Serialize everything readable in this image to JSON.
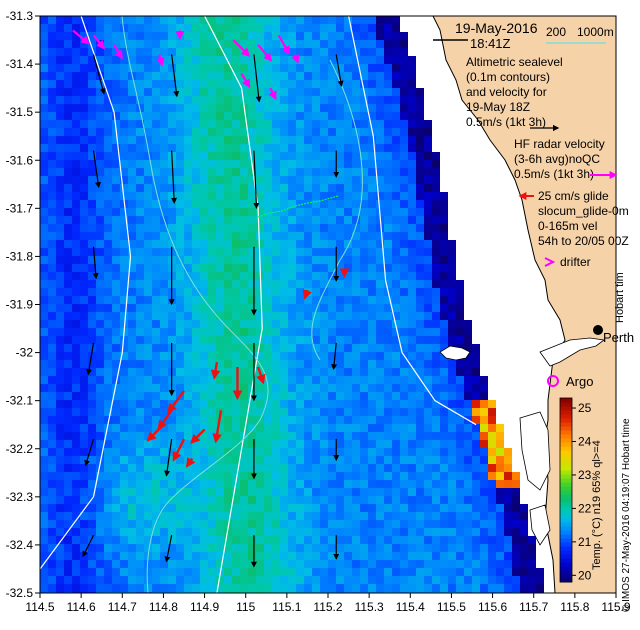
{
  "chart_data": {
    "type": "heatmap",
    "title": "",
    "xlabel": "",
    "ylabel": "",
    "xlim": [
      114.5,
      115.9
    ],
    "ylim": [
      -32.5,
      -31.3
    ],
    "x_ticks": [
      114.5,
      114.6,
      114.7,
      114.8,
      114.9,
      115,
      115.1,
      115.2,
      115.3,
      115.4,
      115.5,
      115.6,
      115.7,
      115.8,
      115.9
    ],
    "x_tick_labels": [
      "114.5",
      "114.6",
      "114.7",
      "114.8",
      "114.9",
      "115",
      "115.1",
      "115.2",
      "115.3",
      "115.4",
      "115.5",
      "115.6",
      "115.7",
      "115.8",
      "115.9"
    ],
    "y_ticks": [
      -31.3,
      -31.4,
      -31.5,
      -31.6,
      -31.7,
      -31.8,
      -31.9,
      -32,
      -32.1,
      -32.2,
      -32.3,
      -32.4,
      -32.5
    ],
    "y_tick_labels": [
      "-31.3",
      "-31.4",
      "-31.5",
      "-31.6",
      "-31.7",
      "-31.8",
      "-31.9",
      "-32",
      "-32.1",
      "-32.2",
      "-32.3",
      "-32.4",
      "-32.5"
    ],
    "colorbar": {
      "label": "Temp. (°C) n19 65% ql>=4",
      "ticks": [
        20,
        21,
        22,
        23,
        24,
        25
      ],
      "range": [
        19.8,
        25.3
      ]
    },
    "annotations": {
      "date": "19-May-2016",
      "time": "18:41Z",
      "depth_200": "200",
      "depth_1000": "1000m",
      "alt_1": "Altimetric sealevel",
      "alt_2": "(0.1m contours)",
      "alt_3": "and velocity for",
      "alt_4": "19-May 18Z",
      "alt_5": "0.5m/s (1kt 3h)",
      "hf_1": "HF radar velocity",
      "hf_2": "(3-6h avg)noQC",
      "hf_3": "0.5m/s (1kt 3h)",
      "glide_1": "25 cm/s glide",
      "glide_2": "slocum_glide-0m",
      "glide_3": "0-165m vel",
      "glide_4": "54h to 20/05 00Z",
      "drifter": "drifter",
      "perth": "Perth",
      "hobart": "Hobart tim",
      "argo": "Argo",
      "credit": "© IMOS 27-May-2016 04:19:07 Hobart time"
    },
    "altimetry_vectors": [
      {
        "lon": 114.63,
        "lat": -31.38,
        "u": 0.04,
        "v": -0.15
      },
      {
        "lon": 114.82,
        "lat": -31.38,
        "u": 0.02,
        "v": -0.16
      },
      {
        "lon": 115.02,
        "lat": -31.38,
        "u": 0.02,
        "v": -0.18
      },
      {
        "lon": 115.22,
        "lat": -31.38,
        "u": 0.02,
        "v": -0.12
      },
      {
        "lon": 114.63,
        "lat": -31.58,
        "u": 0.02,
        "v": -0.14
      },
      {
        "lon": 114.82,
        "lat": -31.58,
        "u": 0.01,
        "v": -0.2
      },
      {
        "lon": 115.02,
        "lat": -31.58,
        "u": 0.01,
        "v": -0.22
      },
      {
        "lon": 115.22,
        "lat": -31.58,
        "u": 0.0,
        "v": -0.1
      },
      {
        "lon": 114.63,
        "lat": -31.78,
        "u": 0.01,
        "v": -0.12
      },
      {
        "lon": 114.82,
        "lat": -31.78,
        "u": 0.0,
        "v": -0.22
      },
      {
        "lon": 115.02,
        "lat": -31.78,
        "u": 0.0,
        "v": -0.26
      },
      {
        "lon": 115.22,
        "lat": -31.78,
        "u": 0.0,
        "v": -0.13
      },
      {
        "lon": 114.63,
        "lat": -31.98,
        "u": -0.02,
        "v": -0.12
      },
      {
        "lon": 114.82,
        "lat": -31.98,
        "u": 0.0,
        "v": -0.2
      },
      {
        "lon": 115.02,
        "lat": -31.98,
        "u": 0.0,
        "v": -0.22
      },
      {
        "lon": 115.22,
        "lat": -31.98,
        "u": -0.01,
        "v": -0.1
      },
      {
        "lon": 114.63,
        "lat": -32.18,
        "u": -0.03,
        "v": -0.1
      },
      {
        "lon": 114.82,
        "lat": -32.18,
        "u": -0.02,
        "v": -0.14
      },
      {
        "lon": 115.02,
        "lat": -32.18,
        "u": 0.0,
        "v": -0.15
      },
      {
        "lon": 115.22,
        "lat": -32.18,
        "u": 0.0,
        "v": -0.08
      },
      {
        "lon": 114.63,
        "lat": -32.38,
        "u": -0.04,
        "v": -0.08
      },
      {
        "lon": 114.82,
        "lat": -32.38,
        "u": -0.02,
        "v": -0.1
      },
      {
        "lon": 115.02,
        "lat": -32.38,
        "u": 0.0,
        "v": -0.12
      },
      {
        "lon": 115.22,
        "lat": -32.38,
        "u": 0.0,
        "v": -0.09
      }
    ],
    "hf_radar_vectors": [
      {
        "lon": 114.58,
        "lat": -31.33,
        "u": 0.06,
        "v": -0.05
      },
      {
        "lon": 114.63,
        "lat": -31.34,
        "u": 0.04,
        "v": -0.05
      },
      {
        "lon": 114.68,
        "lat": -31.36,
        "u": 0.03,
        "v": -0.05
      },
      {
        "lon": 114.79,
        "lat": -31.38,
        "u": 0.01,
        "v": -0.04
      },
      {
        "lon": 114.84,
        "lat": -31.33,
        "u": 0.0,
        "v": -0.03
      },
      {
        "lon": 114.97,
        "lat": -31.35,
        "u": 0.06,
        "v": -0.06
      },
      {
        "lon": 115.03,
        "lat": -31.36,
        "u": 0.05,
        "v": -0.06
      },
      {
        "lon": 115.08,
        "lat": -31.34,
        "u": 0.04,
        "v": -0.07
      },
      {
        "lon": 114.99,
        "lat": -31.42,
        "u": 0.03,
        "v": -0.05
      },
      {
        "lon": 115.06,
        "lat": -31.45,
        "u": 0.02,
        "v": -0.04
      },
      {
        "lon": 115.12,
        "lat": -31.38,
        "u": 0.01,
        "v": -0.03
      }
    ],
    "glider_vectors": [
      {
        "lon": 114.85,
        "lat": -32.08,
        "u": -0.06,
        "v": -0.08
      },
      {
        "lon": 114.82,
        "lat": -32.12,
        "u": -0.05,
        "v": -0.07
      },
      {
        "lon": 114.8,
        "lat": -32.15,
        "u": -0.06,
        "v": -0.06
      },
      {
        "lon": 114.85,
        "lat": -32.18,
        "u": -0.04,
        "v": -0.08
      },
      {
        "lon": 114.9,
        "lat": -32.16,
        "u": -0.05,
        "v": -0.05
      },
      {
        "lon": 114.94,
        "lat": -32.12,
        "u": -0.02,
        "v": -0.12
      },
      {
        "lon": 114.98,
        "lat": -32.03,
        "u": 0.0,
        "v": -0.12
      },
      {
        "lon": 115.03,
        "lat": -32.03,
        "u": 0.02,
        "v": -0.06
      },
      {
        "lon": 114.93,
        "lat": -32.02,
        "u": -0.01,
        "v": -0.06
      },
      {
        "lon": 114.87,
        "lat": -32.22,
        "u": -0.02,
        "v": -0.03
      },
      {
        "lon": 115.15,
        "lat": -31.87,
        "u": -0.01,
        "v": -0.03
      },
      {
        "lon": 115.24,
        "lat": -31.83,
        "u": 0.0,
        "v": -0.02
      }
    ],
    "altimetry_contours": [
      [
        [
          114.6,
          -31.3
        ],
        [
          114.68,
          -31.5
        ],
        [
          114.72,
          -31.8
        ],
        [
          114.7,
          -32.0
        ],
        [
          114.63,
          -32.3
        ],
        [
          114.5,
          -32.45
        ]
      ],
      [
        [
          114.9,
          -31.3
        ],
        [
          114.99,
          -31.45
        ],
        [
          115.03,
          -31.7
        ],
        [
          115.04,
          -31.95
        ],
        [
          114.99,
          -32.2
        ],
        [
          114.93,
          -32.5
        ]
      ],
      [
        [
          115.25,
          -31.3
        ],
        [
          115.31,
          -31.55
        ],
        [
          115.34,
          -31.85
        ],
        [
          115.38,
          -32.0
        ],
        [
          115.46,
          -32.1
        ],
        [
          115.56,
          -32.15
        ]
      ]
    ]
  }
}
